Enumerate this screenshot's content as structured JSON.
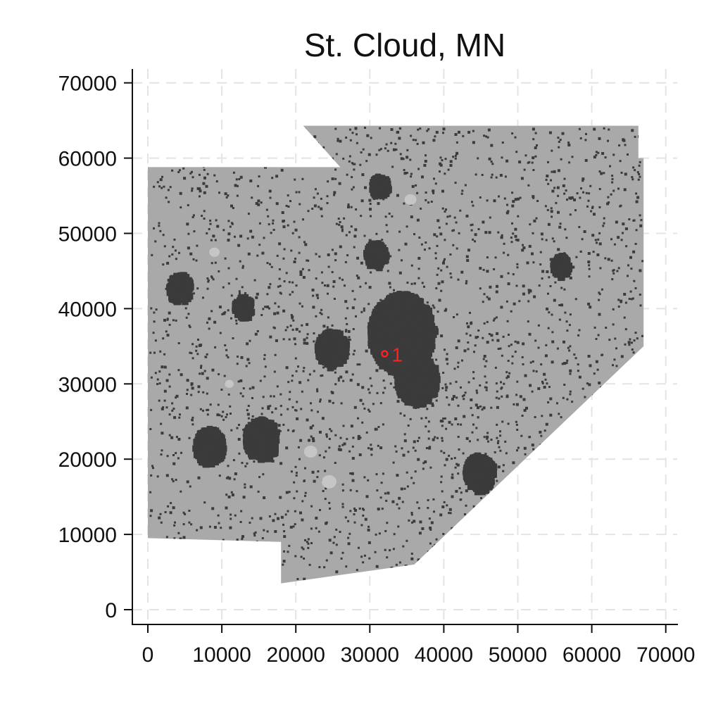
{
  "title": "St. Cloud, MN",
  "chart_data": {
    "type": "map",
    "title": "St. Cloud, MN",
    "xlabel": "",
    "ylabel": "",
    "xlim": [
      -2000,
      72000
    ],
    "ylim": [
      -2000,
      72000
    ],
    "x_ticks": [
      0,
      10000,
      20000,
      30000,
      40000,
      50000,
      60000,
      70000
    ],
    "y_ticks": [
      0,
      10000,
      20000,
      30000,
      40000,
      50000,
      60000,
      70000
    ],
    "x_tick_labels": [
      "0",
      "10000",
      "20000",
      "30000",
      "40000",
      "50000",
      "60000",
      "70000"
    ],
    "y_tick_labels": [
      "0",
      "10000",
      "20000",
      "30000",
      "40000",
      "50000",
      "60000",
      "70000"
    ],
    "grid": true,
    "region_boundary": [
      [
        0,
        9500
      ],
      [
        0,
        58800
      ],
      [
        26000,
        58800
      ],
      [
        21000,
        64300
      ],
      [
        66300,
        64300
      ],
      [
        66300,
        60000
      ],
      [
        67000,
        60000
      ],
      [
        67000,
        35000
      ],
      [
        36000,
        6000
      ],
      [
        18000,
        3500
      ],
      [
        18000,
        9000
      ],
      [
        0,
        9500
      ]
    ],
    "dense_clusters": [
      {
        "x": 34000,
        "y": 37000,
        "size": 5500
      },
      {
        "x": 36000,
        "y": 31000,
        "size": 3500
      },
      {
        "x": 24500,
        "y": 35000,
        "size": 2500
      },
      {
        "x": 15000,
        "y": 23000,
        "size": 2800
      },
      {
        "x": 8000,
        "y": 22000,
        "size": 2500
      },
      {
        "x": 4000,
        "y": 43000,
        "size": 2000
      },
      {
        "x": 44500,
        "y": 18500,
        "size": 2500
      },
      {
        "x": 55500,
        "y": 46000,
        "size": 1500
      },
      {
        "x": 31000,
        "y": 56500,
        "size": 1500
      },
      {
        "x": 12500,
        "y": 40500,
        "size": 1500
      },
      {
        "x": 30500,
        "y": 47500,
        "size": 1800
      }
    ],
    "light_patches": [
      {
        "x": 22000,
        "y": 21000,
        "size": 900
      },
      {
        "x": 24500,
        "y": 17000,
        "size": 1000
      },
      {
        "x": 35500,
        "y": 54500,
        "size": 800
      },
      {
        "x": 9000,
        "y": 47500,
        "size": 700
      },
      {
        "x": 11000,
        "y": 30000,
        "size": 600
      }
    ],
    "marker": {
      "x": 32000,
      "y": 34000,
      "label": "1",
      "color": "#ff2020"
    },
    "colors": {
      "region": "#a9a9a9",
      "developed": "#3b3b3b",
      "light": "#c6c6c6",
      "grid": "#e4e4e4",
      "axis": "#111111"
    }
  }
}
